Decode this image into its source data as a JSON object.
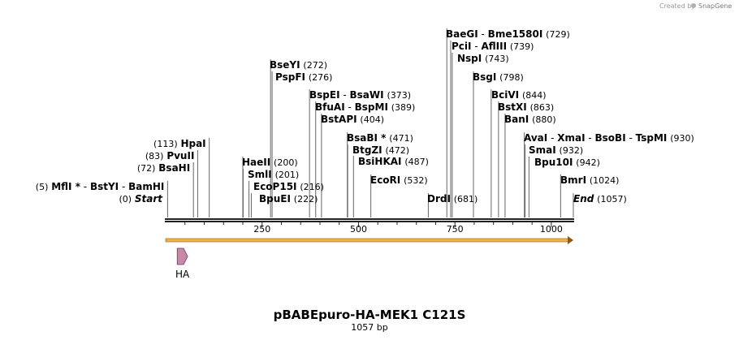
{
  "credit": {
    "prefix": "Created by",
    "brand": "SnapGene"
  },
  "title": "pBABEpuro-HA-MEK1 C121S",
  "subtitle": "1057 bp",
  "length": 1057,
  "ticks": [
    250,
    500,
    750,
    1000
  ],
  "features": [
    {
      "name": "HA",
      "start": 30,
      "end": 57,
      "color": "#c888a8"
    }
  ],
  "orf": {
    "start": 0,
    "end": 1057,
    "color": "#f2b24a"
  },
  "sites": [
    {
      "key": "start",
      "names": [
        "Start"
      ],
      "star": [
        false
      ],
      "positions": "(0)",
      "bp": 0,
      "special": true,
      "side": "left"
    },
    {
      "key": "mfli",
      "names": [
        "MflI",
        "BstYI",
        "BamHI"
      ],
      "star": [
        true,
        false,
        false
      ],
      "positions": "(5)",
      "bp": 5,
      "side": "left"
    },
    {
      "key": "bsahi",
      "names": [
        "BsaHI"
      ],
      "star": [
        false
      ],
      "positions": "(72)",
      "bp": 72,
      "side": "left"
    },
    {
      "key": "pvuii",
      "names": [
        "PvuII"
      ],
      "star": [
        false
      ],
      "positions": "(83)",
      "bp": 83,
      "side": "left"
    },
    {
      "key": "hpai",
      "names": [
        "HpaI"
      ],
      "star": [
        false
      ],
      "positions": "(113)",
      "bp": 113,
      "side": "left"
    },
    {
      "key": "bpuei",
      "names": [
        "BpuEI"
      ],
      "star": [
        false
      ],
      "positions": "(222)",
      "bp": 222,
      "side": "right"
    },
    {
      "key": "ecop15i",
      "names": [
        "EcoP15I"
      ],
      "star": [
        false
      ],
      "positions": "(216)",
      "bp": 216,
      "side": "right"
    },
    {
      "key": "smli",
      "names": [
        "SmlI"
      ],
      "star": [
        false
      ],
      "positions": "(201)",
      "bp": 201,
      "side": "right"
    },
    {
      "key": "haeii",
      "names": [
        "HaeII"
      ],
      "star": [
        false
      ],
      "positions": "(200)",
      "bp": 200,
      "side": "right"
    },
    {
      "key": "pspfi",
      "names": [
        "PspFI"
      ],
      "star": [
        false
      ],
      "positions": "(276)",
      "bp": 276,
      "side": "right"
    },
    {
      "key": "bseyi",
      "names": [
        "BseYI"
      ],
      "star": [
        false
      ],
      "positions": "(272)",
      "bp": 272,
      "side": "right"
    },
    {
      "key": "bstapi",
      "names": [
        "BstAPI"
      ],
      "star": [
        false
      ],
      "positions": "(404)",
      "bp": 404,
      "side": "right"
    },
    {
      "key": "bfuai",
      "names": [
        "BfuAI",
        "BspMI"
      ],
      "star": [
        false,
        false
      ],
      "positions": "(389)",
      "bp": 389,
      "side": "right"
    },
    {
      "key": "bspei",
      "names": [
        "BspEI",
        "BsaWI"
      ],
      "star": [
        false,
        false
      ],
      "positions": "(373)",
      "bp": 373,
      "side": "right"
    },
    {
      "key": "ecori",
      "names": [
        "EcoRI"
      ],
      "star": [
        false
      ],
      "positions": "(532)",
      "bp": 532,
      "side": "right"
    },
    {
      "key": "bsihkai",
      "names": [
        "BsiHKAI"
      ],
      "star": [
        false
      ],
      "positions": "(487)",
      "bp": 487,
      "side": "right"
    },
    {
      "key": "btgzi",
      "names": [
        "BtgZI"
      ],
      "star": [
        false
      ],
      "positions": "(472)",
      "bp": 472,
      "side": "right"
    },
    {
      "key": "bsabi",
      "names": [
        "BsaBI"
      ],
      "star": [
        true
      ],
      "positions": "(471)",
      "bp": 471,
      "side": "right"
    },
    {
      "key": "drdi",
      "names": [
        "DrdI"
      ],
      "star": [
        false
      ],
      "positions": "(681)",
      "bp": 681,
      "side": "right"
    },
    {
      "key": "bsgi",
      "names": [
        "BsgI"
      ],
      "star": [
        false
      ],
      "positions": "(798)",
      "bp": 798,
      "side": "right"
    },
    {
      "key": "nspi",
      "names": [
        "NspI"
      ],
      "star": [
        false
      ],
      "positions": "(743)",
      "bp": 743,
      "side": "right"
    },
    {
      "key": "pcii",
      "names": [
        "PciI",
        "AflIII"
      ],
      "star": [
        false,
        false
      ],
      "positions": "(739)",
      "bp": 739,
      "side": "right"
    },
    {
      "key": "baegi",
      "names": [
        "BaeGI",
        "Bme1580I"
      ],
      "star": [
        false,
        false
      ],
      "positions": "(729)",
      "bp": 729,
      "side": "right"
    },
    {
      "key": "bani",
      "names": [
        "BanI"
      ],
      "star": [
        false
      ],
      "positions": "(880)",
      "bp": 880,
      "side": "right"
    },
    {
      "key": "bstxi",
      "names": [
        "BstXI"
      ],
      "star": [
        false
      ],
      "positions": "(863)",
      "bp": 863,
      "side": "right"
    },
    {
      "key": "bcivi",
      "names": [
        "BciVI"
      ],
      "star": [
        false
      ],
      "positions": "(844)",
      "bp": 844,
      "side": "right"
    },
    {
      "key": "bmri",
      "names": [
        "BmrI"
      ],
      "star": [
        false
      ],
      "positions": "(1024)",
      "bp": 1024,
      "side": "right"
    },
    {
      "key": "bpu10i",
      "names": [
        "Bpu10I"
      ],
      "star": [
        false
      ],
      "positions": "(942)",
      "bp": 942,
      "side": "right"
    },
    {
      "key": "smai",
      "names": [
        "SmaI"
      ],
      "star": [
        false
      ],
      "positions": "(932)",
      "bp": 932,
      "side": "right"
    },
    {
      "key": "avai",
      "names": [
        "AvaI",
        "XmaI",
        "BsoBI",
        "TspMI"
      ],
      "star": [
        false,
        false,
        false,
        false
      ],
      "positions": "(930)",
      "bp": 930,
      "side": "right"
    },
    {
      "key": "end",
      "names": [
        "End"
      ],
      "star": [
        false
      ],
      "positions": "(1057)",
      "bp": 1057,
      "special": true,
      "side": "right"
    }
  ]
}
